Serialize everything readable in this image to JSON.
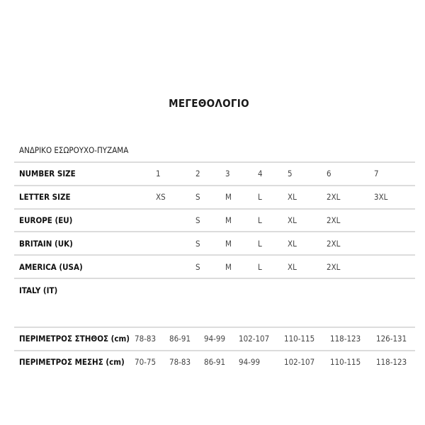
{
  "title": "ΜΕΓΕΘΟΛΟΓΙΟ",
  "subtitle": "ΑΝΔΡΙΚΟ ΕΣΩΡΟΥΧΟ-ΠΥΖΑΜΑ",
  "size_table": [
    {
      "label": "NUMBER SIZE",
      "values": [
        "1",
        "2",
        "3",
        "4",
        "5",
        "6",
        "7"
      ]
    },
    {
      "label": "LETTER SIZE",
      "values": [
        "XS",
        "S",
        "M",
        "L",
        "XL",
        "2XL",
        "3XL"
      ]
    },
    {
      "label": "EUROPE (EU)",
      "values": [
        "",
        "S",
        "M",
        "L",
        "XL",
        "2XL",
        ""
      ]
    },
    {
      "label": "BRITAIN (UK)",
      "values": [
        "",
        "S",
        "M",
        "L",
        "XL",
        "2XL",
        ""
      ]
    },
    {
      "label": "AMERICA (USA)",
      "values": [
        "",
        "S",
        "M",
        "L",
        "XL",
        "2XL",
        ""
      ]
    },
    {
      "label": "ITALY (IT)",
      "values": [
        "",
        "",
        "",
        "",
        "",
        "",
        ""
      ]
    }
  ],
  "measurements": [
    {
      "label": "ΠΕΡΙΜΕΤΡΟΣ ΣΤΗΘΟΣ (cm)",
      "values": [
        "78-83",
        "86-91",
        "94-99",
        "102-107",
        "110-115",
        "118-123",
        "126-131"
      ]
    },
    {
      "label": "ΠΕΡΙΜΕΤΡΟΣ ΜΕΣΗΣ (cm)",
      "values": [
        "70-75",
        "78-83",
        "86-91",
        "94-99",
        "102-107",
        "110-115",
        "118-123"
      ]
    }
  ]
}
